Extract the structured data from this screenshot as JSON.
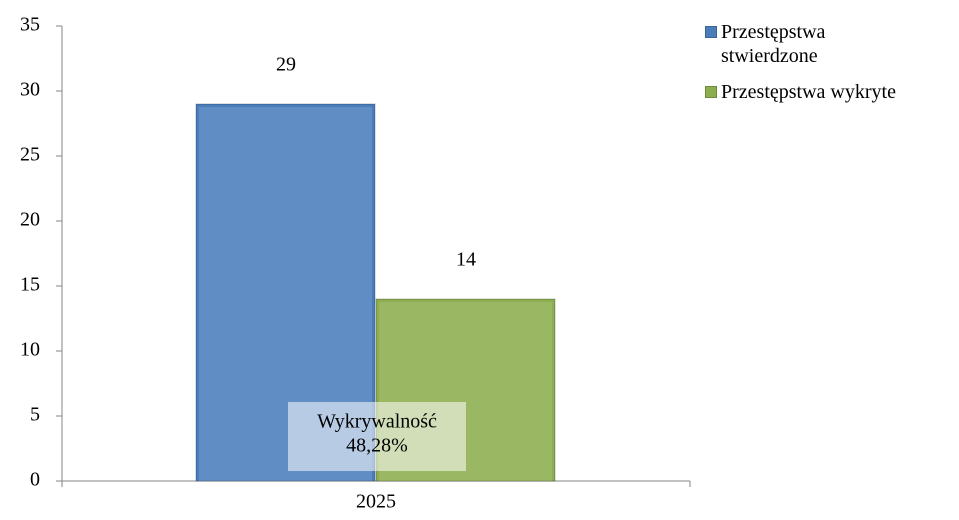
{
  "chart_data": {
    "type": "bar",
    "categories": [
      "2025"
    ],
    "series": [
      {
        "name": "Przestępstwa stwierdzone",
        "color": "#4a7ebb",
        "values": [
          29
        ]
      },
      {
        "name": "Przestępstwa wykryte",
        "color": "#8cae4e",
        "values": [
          14
        ]
      }
    ],
    "ylim": [
      0,
      35
    ],
    "yticks": [
      0,
      5,
      10,
      15,
      20,
      25,
      30,
      35
    ],
    "annotation": [
      "Wykrywalność",
      "48,28%"
    ],
    "legend": "right"
  }
}
